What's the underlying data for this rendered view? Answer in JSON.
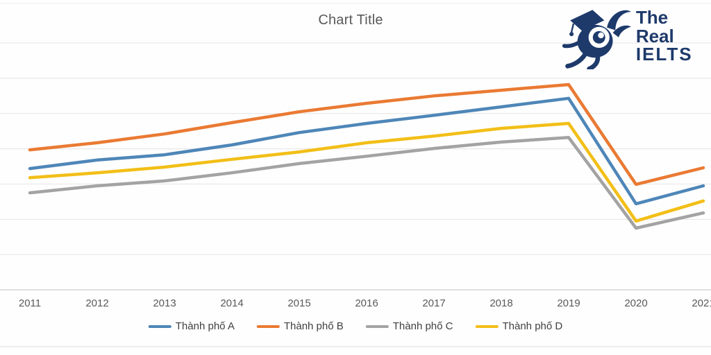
{
  "logo": {
    "line1": "The Real",
    "line2": "IELTS",
    "color": "#1e3a6b"
  },
  "frame": {
    "top_border_color": "#ececec",
    "bottom_divider_color": "#d9d9d9",
    "gridline_color": "#e4e4e4",
    "axis_line_color": "#cccccc",
    "title_color": "#595959",
    "tick_label_color": "#595959",
    "legend_text_color": "#3f3f3f"
  },
  "chart_data": {
    "type": "line",
    "title": "Chart Title",
    "categories": [
      "2011",
      "2012",
      "2013",
      "2014",
      "2015",
      "2016",
      "2017",
      "2018",
      "2019",
      "2020",
      "2021"
    ],
    "series": [
      {
        "name": "Thành phố A",
        "color": "#4e86b8",
        "values": [
          3.44,
          3.68,
          3.83,
          4.11,
          4.46,
          4.72,
          4.95,
          5.19,
          5.43,
          2.44,
          2.95
        ]
      },
      {
        "name": "Thành phố B",
        "color": "#ea7a33",
        "values": [
          3.97,
          4.17,
          4.42,
          4.74,
          5.05,
          5.29,
          5.5,
          5.66,
          5.82,
          2.99,
          3.46
        ]
      },
      {
        "name": "Thành phố C",
        "color": "#a3a3a3",
        "values": [
          2.75,
          2.95,
          3.09,
          3.32,
          3.58,
          3.79,
          4.01,
          4.19,
          4.32,
          1.75,
          2.18
        ]
      },
      {
        "name": "Thành phố D",
        "color": "#f2bf17",
        "values": [
          3.18,
          3.32,
          3.48,
          3.7,
          3.91,
          4.17,
          4.36,
          4.58,
          4.72,
          1.95,
          2.52
        ]
      }
    ],
    "xlabel": "",
    "ylabel": "",
    "ylim": [
      0,
      7
    ],
    "y_gridline_interval": 1,
    "y_axis_labels_visible": false,
    "y_units": "gridline units (y-axis tick labels cropped out of screenshot)",
    "grid": true,
    "legend_position": "bottom"
  }
}
